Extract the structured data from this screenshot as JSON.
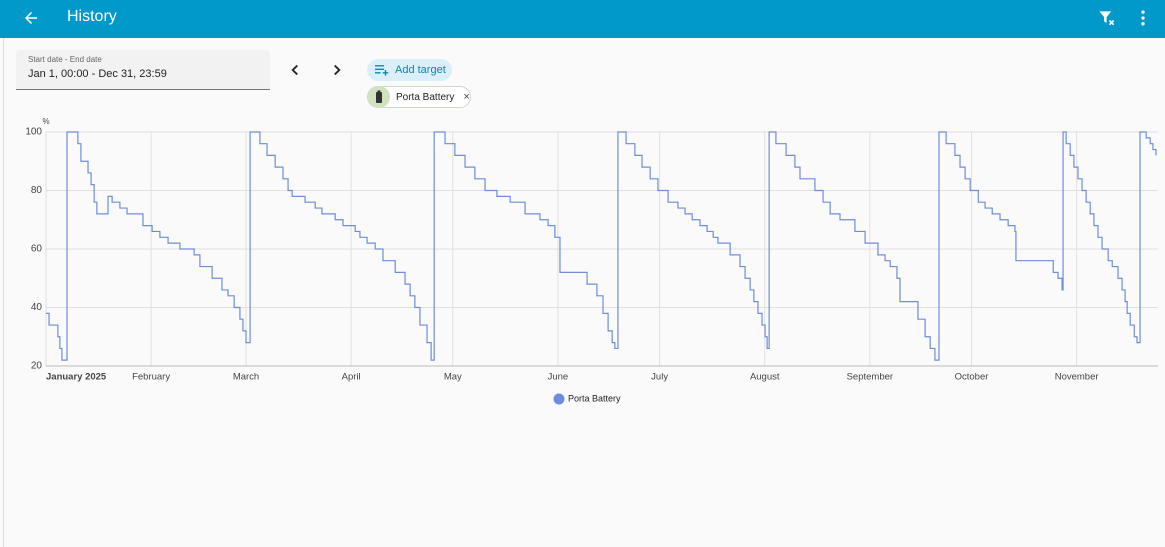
{
  "header": {
    "title": "History"
  },
  "date_picker": {
    "label": "Start date - End date",
    "value": "Jan 1, 00:00 - Dec 31, 23:59"
  },
  "targets": {
    "add_label": "Add target",
    "chips": [
      {
        "label": "Porta Battery"
      }
    ]
  },
  "chart_data": {
    "type": "line",
    "ylabel": "%",
    "grid": true,
    "xlim": [
      0,
      328
    ],
    "xticks": [
      {
        "value": 0,
        "label": "January 2025"
      },
      {
        "value": 31,
        "label": "February"
      },
      {
        "value": 59,
        "label": "March"
      },
      {
        "value": 90,
        "label": "April"
      },
      {
        "value": 120,
        "label": "May"
      },
      {
        "value": 151,
        "label": "June"
      },
      {
        "value": 181,
        "label": "July"
      },
      {
        "value": 212,
        "label": "August"
      },
      {
        "value": 243,
        "label": "September"
      },
      {
        "value": 273,
        "label": "October"
      },
      {
        "value": 304,
        "label": "November"
      }
    ],
    "ylim": [
      20,
      100
    ],
    "yticks": [
      20,
      40,
      60,
      80,
      100
    ],
    "x": [
      0,
      0.9,
      3.5,
      4.1,
      4.7,
      6.2,
      9.4,
      10.3,
      12.4,
      13.3,
      14.2,
      15.0,
      18.3,
      19.5,
      21.8,
      23.9,
      28.6,
      31.3,
      33.6,
      36.0,
      39.5,
      43.7,
      45.4,
      49.0,
      51.9,
      53.7,
      55.5,
      57.2,
      58.1,
      59.0,
      60.2,
      63.1,
      65.2,
      67.6,
      69.9,
      71.4,
      72.6,
      76.4,
      79.4,
      81.4,
      85.3,
      87.6,
      91.2,
      92.6,
      94.7,
      97.1,
      99.4,
      103.0,
      105.9,
      107.4,
      108.8,
      110.3,
      112.4,
      113.6,
      114.5,
      117.7,
      120.6,
      123.6,
      126.5,
      129.5,
      133.0,
      136.9,
      141.3,
      145.7,
      148.1,
      150.1,
      151.6,
      159.6,
      162.5,
      164.3,
      165.8,
      167.0,
      167.8,
      168.7,
      171.1,
      173.7,
      175.8,
      178.2,
      180.5,
      183.5,
      186.4,
      188.5,
      190.6,
      192.9,
      195.0,
      196.8,
      198.2,
      201.8,
      204.7,
      206.2,
      207.7,
      208.8,
      210.0,
      211.2,
      212.1,
      212.7,
      213.3,
      215.3,
      218.3,
      220.9,
      222.4,
      226.8,
      229.2,
      231.3,
      234.2,
      238.6,
      241.6,
      245.4,
      247.5,
      249.0,
      251.0,
      251.9,
      257.2,
      259.3,
      260.8,
      262.2,
      263.4,
      265.5,
      268.1,
      269.6,
      271.1,
      272.6,
      275.0,
      277.0,
      279.1,
      281.4,
      283.8,
      285.8,
      286.1,
      297.1,
      298.5,
      299.7,
      300.0,
      300.9,
      302.1,
      303.2,
      304.4,
      305.6,
      306.8,
      308.0,
      309.1,
      310.3,
      311.5,
      313.3,
      314.5,
      316.2,
      317.4,
      318.3,
      318.9,
      319.8,
      321.0,
      321.8,
      322.7,
      324.5,
      325.7,
      326.5,
      327.4
    ],
    "series": [
      {
        "name": "Porta Battery",
        "color": "#6f8ddc",
        "values": [
          38,
          34,
          30,
          26,
          22,
          100,
          96,
          90,
          86,
          82,
          76,
          72,
          78,
          76,
          74,
          72,
          68,
          66,
          64,
          62,
          60,
          58,
          54,
          50,
          46,
          44,
          40,
          36,
          32,
          28,
          100,
          96,
          92,
          88,
          84,
          80,
          78,
          76,
          74,
          72,
          70,
          68,
          66,
          64,
          62,
          60,
          56,
          52,
          48,
          44,
          40,
          34,
          28,
          22,
          100,
          96,
          92,
          88,
          84,
          80,
          78,
          76,
          72,
          70,
          68,
          64,
          52,
          48,
          44,
          38,
          32,
          28,
          26,
          100,
          96,
          92,
          88,
          84,
          80,
          76,
          74,
          72,
          70,
          68,
          66,
          64,
          62,
          58,
          54,
          50,
          46,
          42,
          38,
          34,
          30,
          26,
          100,
          96,
          92,
          88,
          84,
          80,
          76,
          72,
          70,
          66,
          62,
          58,
          56,
          54,
          50,
          42,
          36,
          30,
          26,
          22,
          100,
          96,
          92,
          88,
          84,
          80,
          76,
          74,
          72,
          70,
          68,
          66,
          56,
          52,
          50,
          46,
          100,
          96,
          92,
          88,
          84,
          80,
          76,
          72,
          68,
          64,
          60,
          56,
          54,
          50,
          46,
          42,
          38,
          34,
          30,
          28,
          100,
          98,
          96,
          94,
          92
        ]
      }
    ]
  }
}
